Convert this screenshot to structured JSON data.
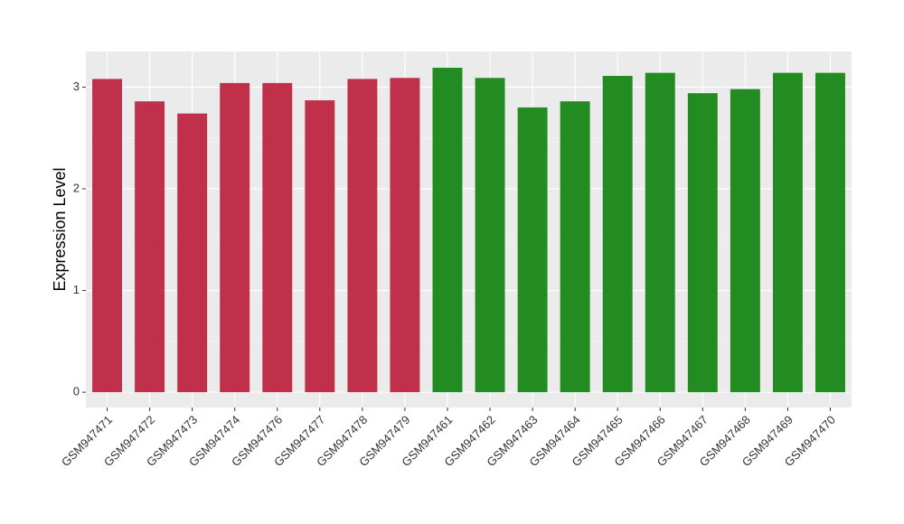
{
  "chart_data": {
    "type": "bar",
    "y_label": "Expression Level",
    "categories": [
      "GSM947471",
      "GSM947472",
      "GSM947473",
      "GSM947474",
      "GSM947476",
      "GSM947477",
      "GSM947478",
      "GSM947479",
      "GSM947461",
      "GSM947462",
      "GSM947463",
      "GSM947464",
      "GSM947465",
      "GSM947466",
      "GSM947467",
      "GSM947468",
      "GSM947469",
      "GSM947470"
    ],
    "values": [
      3.08,
      2.86,
      2.74,
      3.04,
      3.04,
      2.87,
      3.08,
      3.09,
      3.19,
      3.09,
      2.8,
      2.86,
      3.11,
      3.14,
      2.94,
      2.98,
      3.14,
      3.14
    ],
    "colors": [
      "#c0304a",
      "#c0304a",
      "#c0304a",
      "#c0304a",
      "#c0304a",
      "#c0304a",
      "#c0304a",
      "#c0304a",
      "#228b22",
      "#228b22",
      "#228b22",
      "#228b22",
      "#228b22",
      "#228b22",
      "#228b22",
      "#228b22",
      "#228b22",
      "#228b22"
    ],
    "ylim": [
      -0.15,
      3.35
    ],
    "yticks": [
      0,
      1,
      2,
      3
    ],
    "grid": true
  }
}
